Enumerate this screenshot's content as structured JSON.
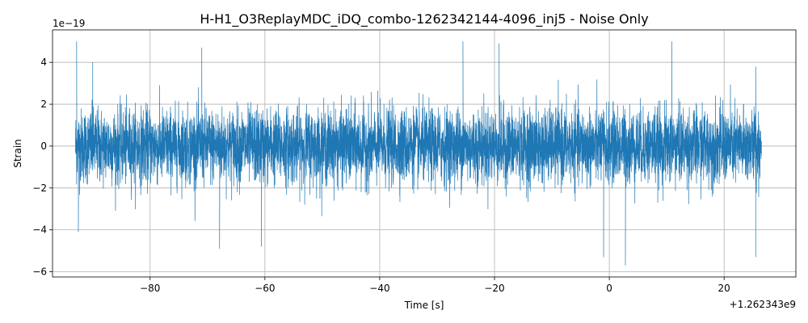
{
  "chart_data": {
    "type": "line",
    "title": "H-H1_O3ReplayMDC_iDQ_combo-1262342144-4096_inj5 - Noise Only",
    "xlabel": "Time [s]",
    "ylabel": "Strain",
    "x_offset_text": "+1.262343e9",
    "y_scale_text": "1e−19",
    "xlim": [
      -97.0,
      32.5
    ],
    "ylim": [
      -6.25,
      5.55
    ],
    "x_ticks": [
      -80,
      -60,
      -40,
      -20,
      0,
      20
    ],
    "x_tick_labels": [
      "−80",
      "−60",
      "−40",
      "−20",
      "0",
      "20"
    ],
    "y_ticks": [
      -6,
      -4,
      -2,
      0,
      2,
      4
    ],
    "y_tick_labels": [
      "−6",
      "−4",
      "−2",
      "0",
      "2",
      "4"
    ],
    "grid": true,
    "series": [
      {
        "color": "#1f77b4",
        "x_range": [
          -93.0,
          26.5
        ],
        "typical_band": [
          -2.0,
          2.0
        ],
        "peaks": [
          {
            "x": -92.8,
            "y": 5.0
          },
          {
            "x": -92.5,
            "y": -4.1
          },
          {
            "x": -90.0,
            "y": 4.0
          },
          {
            "x": -67.9,
            "y": -4.9
          },
          {
            "x": -60.6,
            "y": -4.8
          },
          {
            "x": -71.0,
            "y": 4.7
          },
          {
            "x": -25.5,
            "y": 5.0
          },
          {
            "x": -19.2,
            "y": 4.9
          },
          {
            "x": -1.0,
            "y": -5.3
          },
          {
            "x": 2.8,
            "y": -5.7
          },
          {
            "x": 10.9,
            "y": 5.0
          },
          {
            "x": 25.5,
            "y": -5.3
          },
          {
            "x": 25.5,
            "y": 3.8
          }
        ]
      }
    ]
  }
}
